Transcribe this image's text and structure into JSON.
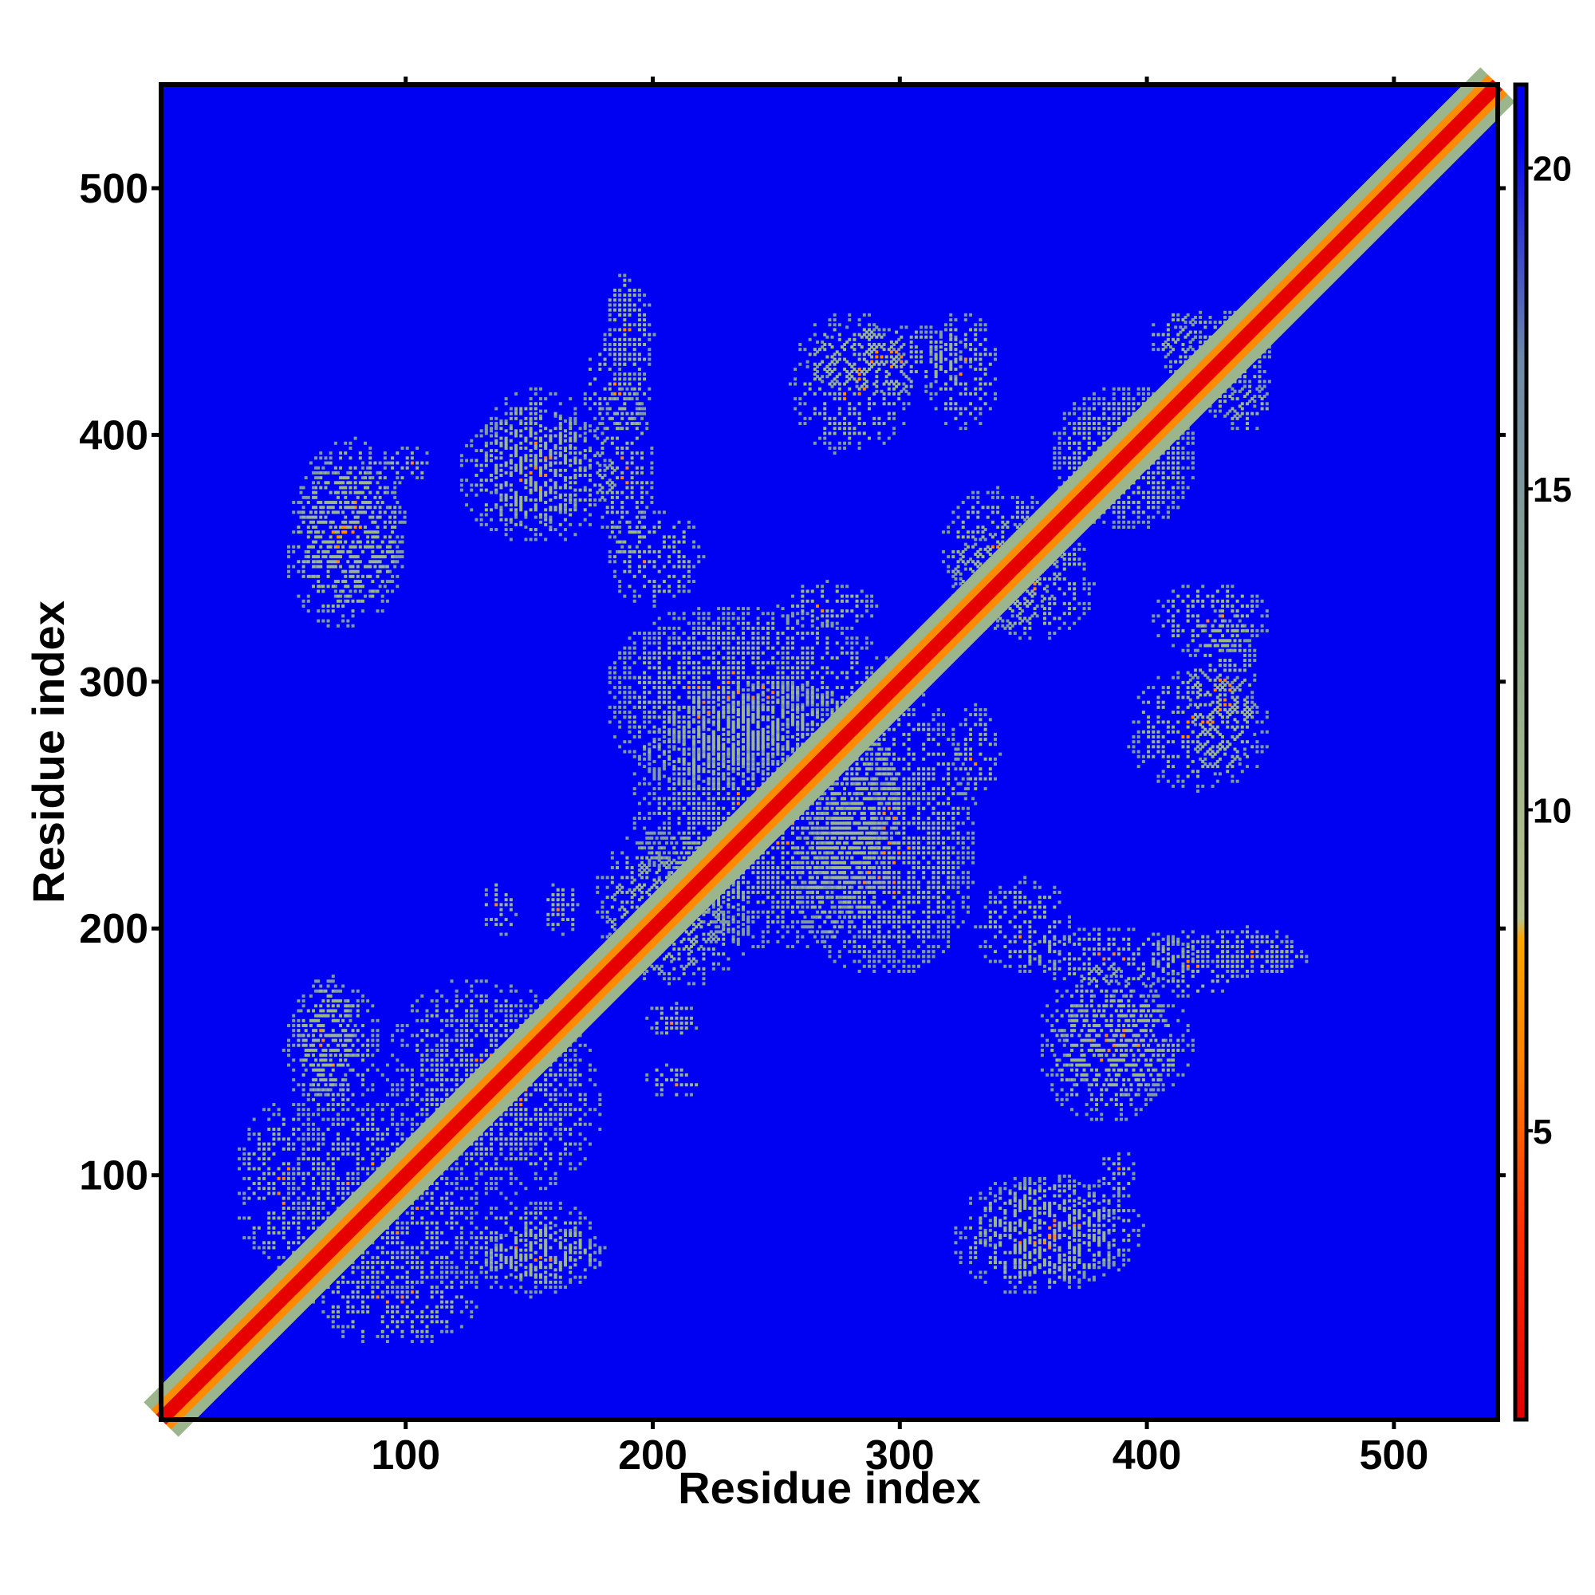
{
  "chart_data": {
    "type": "heatmap",
    "title": "",
    "xlabel": "Residue index",
    "ylabel": "Residue index",
    "xlim": [
      1,
      542
    ],
    "ylim": [
      1,
      542
    ],
    "x_ticks": [
      100,
      200,
      300,
      400,
      500
    ],
    "y_ticks": [
      100,
      200,
      300,
      400,
      500
    ],
    "colorbar": {
      "ticks": [
        5,
        10,
        15,
        20
      ],
      "range": [
        0.5,
        21.3
      ],
      "stops": [
        {
          "value": 0.5,
          "color": "#e10000"
        },
        {
          "value": 3.5,
          "color": "#ff3000"
        },
        {
          "value": 6.0,
          "color": "#ff8000"
        },
        {
          "value": 8.0,
          "color": "#ffa500"
        },
        {
          "value": 8.3,
          "color": "#b9c38c"
        },
        {
          "value": 12.5,
          "color": "#8eab8c"
        },
        {
          "value": 17.0,
          "color": "#6f8aa8"
        },
        {
          "value": 20.5,
          "color": "#0000f0"
        }
      ]
    },
    "colors": {
      "background": "#0000f2",
      "diagonal": "#e60000",
      "contact_mid": "#ff8c00",
      "contact_far": "#9bb58c",
      "contact_edge": "#7f9aa0"
    },
    "diagonal": {
      "from": 1,
      "to": 542
    },
    "contact_regions": [
      {
        "x": [
          30,
          70
        ],
        "y": [
          60,
          130
        ]
      },
      {
        "x": [
          70,
          130
        ],
        "y": [
          50,
          110
        ]
      },
      {
        "x": [
          120,
          180
        ],
        "y": [
          50,
          90
        ]
      },
      {
        "x": [
          90,
          170
        ],
        "y": [
          100,
          180
        ]
      },
      {
        "x": [
          55,
          80
        ],
        "y": [
          130,
          180
        ]
      },
      {
        "x": [
          175,
          230
        ],
        "y": [
          180,
          240
        ]
      },
      {
        "x": [
          200,
          300
        ],
        "y": [
          190,
          300
        ]
      },
      {
        "x": [
          180,
          260
        ],
        "y": [
          255,
          330
        ]
      },
      {
        "x": [
          265,
          330
        ],
        "y": [
          180,
          300
        ]
      },
      {
        "x": [
          315,
          365
        ],
        "y": [
          320,
          380
        ]
      },
      {
        "x": [
          360,
          420
        ],
        "y": [
          360,
          420
        ]
      },
      {
        "x": [
          405,
          450
        ],
        "y": [
          415,
          450
        ]
      },
      {
        "x": [
          330,
          400
        ],
        "y": [
          55,
          100
        ]
      },
      {
        "x": [
          355,
          410
        ],
        "y": [
          120,
          185
        ]
      },
      {
        "x": [
          400,
          440
        ],
        "y": [
          170,
          200
        ]
      },
      {
        "x": [
          440,
          465
        ],
        "y": [
          180,
          195
        ]
      },
      {
        "x": [
          415,
          445
        ],
        "y": [
          260,
          330
        ]
      },
      {
        "x": [
          50,
          100
        ],
        "y": [
          320,
          390
        ]
      },
      {
        "x": [
          130,
          175
        ],
        "y": [
          360,
          420
        ]
      },
      {
        "x": [
          175,
          200
        ],
        "y": [
          350,
          420
        ]
      },
      {
        "x": [
          180,
          220
        ],
        "y": [
          330,
          370
        ]
      },
      {
        "x": [
          180,
          200
        ],
        "y": [
          420,
          460
        ]
      },
      {
        "x": [
          255,
          305
        ],
        "y": [
          390,
          450
        ]
      },
      {
        "x": [
          310,
          340
        ],
        "y": [
          400,
          450
        ]
      },
      {
        "x": [
          250,
          290
        ],
        "y": [
          320,
          340
        ]
      },
      {
        "x": [
          155,
          170
        ],
        "y": [
          195,
          220
        ]
      },
      {
        "x": [
          130,
          145
        ],
        "y": [
          195,
          220
        ]
      },
      {
        "x": [
          380,
          395
        ],
        "y": [
          90,
          110
        ]
      },
      {
        "x": [
          430,
          450
        ],
        "y": [
          400,
          420
        ]
      }
    ]
  }
}
